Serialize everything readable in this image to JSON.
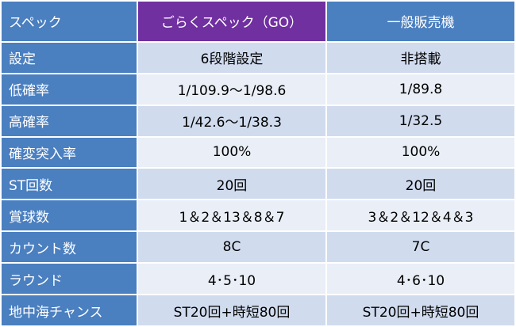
{
  "header": {
    "label": "スペック",
    "col1": "ごらくスペック（GO）",
    "col2": "一般販売機"
  },
  "rows": [
    {
      "label": "設定",
      "go": "6段階設定",
      "gen": "非搭載"
    },
    {
      "label": "低確率",
      "go": "1/109.9～1/98.6",
      "gen": "1/89.8"
    },
    {
      "label": "高確率",
      "go": "1/42.6～1/38.3",
      "gen": "1/32.5"
    },
    {
      "label": "確変突入率",
      "go": "100%",
      "gen": "100%"
    },
    {
      "label": "ST回数",
      "go": "20回",
      "gen": "20回"
    },
    {
      "label": "賞球数",
      "go": "1＆2＆13＆8＆7",
      "gen": "3＆2＆12＆4＆3"
    },
    {
      "label": "カウント数",
      "go": "8C",
      "gen": "7C"
    },
    {
      "label": "ラウンド",
      "go": "4･5･10",
      "gen": "4･6･10"
    },
    {
      "label": "地中海チャンス",
      "go": "ST20回+時短80回",
      "gen": "ST20回+時短80回"
    }
  ],
  "colors": {
    "header_label": "#4a7fc0",
    "header_go": "#7030a0",
    "header_general": "#4a7fc0",
    "row_dark": "#d0dbee",
    "row_light": "#e9eef7"
  }
}
